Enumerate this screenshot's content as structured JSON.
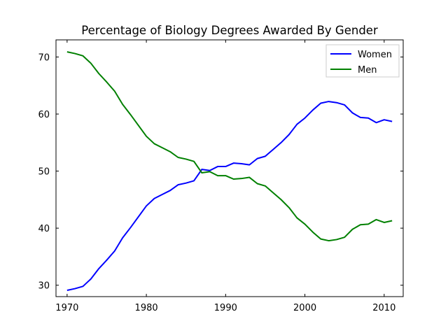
{
  "chart_data": {
    "type": "line",
    "title": "Percentage of Biology Degrees Awarded By Gender",
    "xlabel": "",
    "ylabel": "",
    "xlim": [
      1968.6,
      2012.4
    ],
    "ylim": [
      28.0,
      73.0
    ],
    "x_ticks": [
      1970,
      1980,
      1990,
      2000,
      2010
    ],
    "y_ticks": [
      30,
      40,
      50,
      60,
      70
    ],
    "grid": false,
    "legend_position": "top-right",
    "x": [
      1970,
      1971,
      1972,
      1973,
      1974,
      1975,
      1976,
      1977,
      1978,
      1979,
      1980,
      1981,
      1982,
      1983,
      1984,
      1985,
      1986,
      1987,
      1988,
      1989,
      1990,
      1991,
      1992,
      1993,
      1994,
      1995,
      1996,
      1997,
      1998,
      1999,
      2000,
      2001,
      2002,
      2003,
      2004,
      2005,
      2006,
      2007,
      2008,
      2009,
      2010,
      2011
    ],
    "series": [
      {
        "name": "Women",
        "color": "#0000ff",
        "values": [
          29.1,
          29.4,
          29.8,
          31.1,
          32.9,
          34.4,
          36.0,
          38.3,
          40.1,
          42.0,
          43.9,
          45.2,
          45.9,
          46.6,
          47.6,
          47.9,
          48.3,
          50.3,
          50.1,
          50.8,
          50.8,
          51.4,
          51.3,
          51.1,
          52.2,
          52.6,
          53.8,
          55.0,
          56.4,
          58.2,
          59.3,
          60.7,
          61.9,
          62.2,
          62.0,
          61.6,
          60.2,
          59.4,
          59.3,
          58.5,
          59.0,
          58.7
        ]
      },
      {
        "name": "Men",
        "color": "#008000",
        "values": [
          70.9,
          70.6,
          70.2,
          68.9,
          67.1,
          65.6,
          64.0,
          61.7,
          59.9,
          58.0,
          56.1,
          54.8,
          54.1,
          53.4,
          52.4,
          52.1,
          51.7,
          49.7,
          49.9,
          49.2,
          49.2,
          48.6,
          48.7,
          48.9,
          47.8,
          47.4,
          46.2,
          45.0,
          43.6,
          41.8,
          40.7,
          39.3,
          38.1,
          37.8,
          38.0,
          38.4,
          39.8,
          40.6,
          40.7,
          41.5,
          41.0,
          41.3
        ]
      }
    ]
  }
}
